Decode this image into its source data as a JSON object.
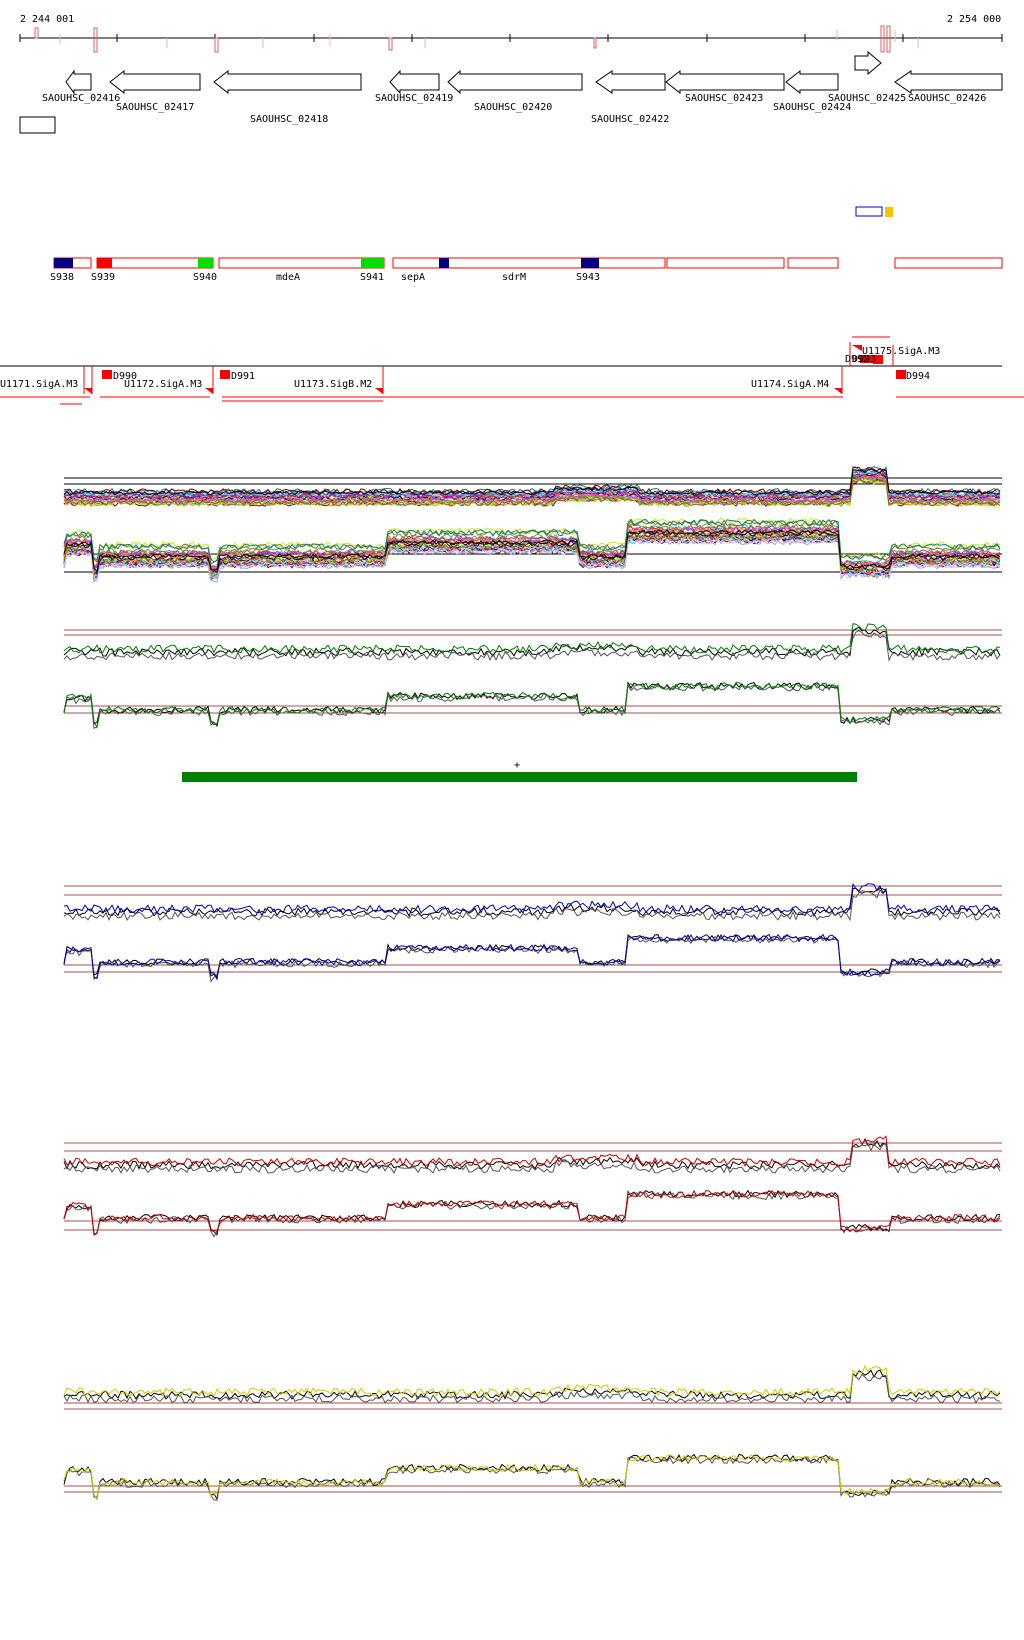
{
  "ruler": {
    "start_label": "2 244 001",
    "end_label": "2 254 000"
  },
  "genes": [
    {
      "label": "SAOUHSC_02416",
      "strand": "-"
    },
    {
      "label": "SAOUHSC_02417",
      "strand": "-"
    },
    {
      "label": "SAOUHSC_02418",
      "strand": "-"
    },
    {
      "label": "SAOUHSC_02419",
      "strand": "-"
    },
    {
      "label": "SAOUHSC_02420",
      "strand": "-"
    },
    {
      "label": "SAOUHSC_02422",
      "strand": "-"
    },
    {
      "label": "SAOUHSC_02423",
      "strand": "-"
    },
    {
      "label": "SAOUHSC_02424",
      "strand": "-"
    },
    {
      "label": "SAOUHSC_02425",
      "strand": "+"
    },
    {
      "label": "SAOUHSC_02426",
      "strand": "-"
    }
  ],
  "segments": [
    {
      "label": "S938",
      "color": "#000080"
    },
    {
      "label": "S939",
      "color": "#ff0000"
    },
    {
      "label": "S940",
      "color": "#00dd00"
    },
    {
      "label": "mdeA",
      "color": "#ff0000"
    },
    {
      "label": "S941",
      "color": "#00dd00"
    },
    {
      "label": "sepA",
      "color": "#ff0000"
    },
    {
      "label": "sdrM",
      "color": "#ff0000"
    },
    {
      "label": "S943",
      "color": "#000080"
    }
  ],
  "transcription_units": [
    {
      "label": "U1171.SigA.M3",
      "color": "#ff0000"
    },
    {
      "label": "U1172.SigA.M3",
      "color": "#ff0000"
    },
    {
      "label": "U1173.SigB.M2",
      "color": "#ff0000"
    },
    {
      "label": "U1174.SigA.M4",
      "color": "#ff0000"
    },
    {
      "label": "U1175.SigA.M3",
      "color": "#ff0000"
    }
  ],
  "dominance_markers": [
    {
      "label": "D990"
    },
    {
      "label": "D991"
    },
    {
      "label": "D992"
    },
    {
      "label": "D993"
    },
    {
      "label": "D994"
    }
  ],
  "condition_bar": {
    "label": "+",
    "color": "#008000"
  },
  "panels": [
    {
      "id": "all",
      "color": "multi"
    },
    {
      "id": "green",
      "color": "#008000"
    },
    {
      "id": "blue",
      "color": "#0000c0"
    },
    {
      "id": "red",
      "color": "#cc0000"
    },
    {
      "id": "yellow",
      "color": "#cccc00"
    }
  ]
}
